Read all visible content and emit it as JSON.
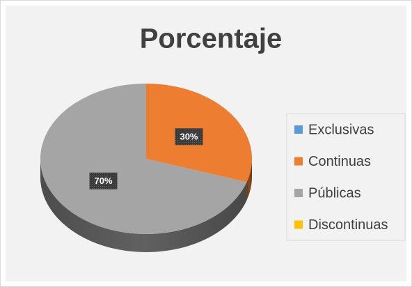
{
  "chart_data": {
    "type": "pie",
    "title": "Porcentaje",
    "categories": [
      "Exclusivas",
      "Continuas",
      "Públicas",
      "Discontinuas"
    ],
    "values": [
      0,
      30,
      70,
      0
    ],
    "value_labels": [
      null,
      "30%",
      "70%",
      null
    ],
    "colors": [
      "#5b9bd5",
      "#ed7d31",
      "#a5a5a5",
      "#ffc000"
    ],
    "legend": "right"
  }
}
